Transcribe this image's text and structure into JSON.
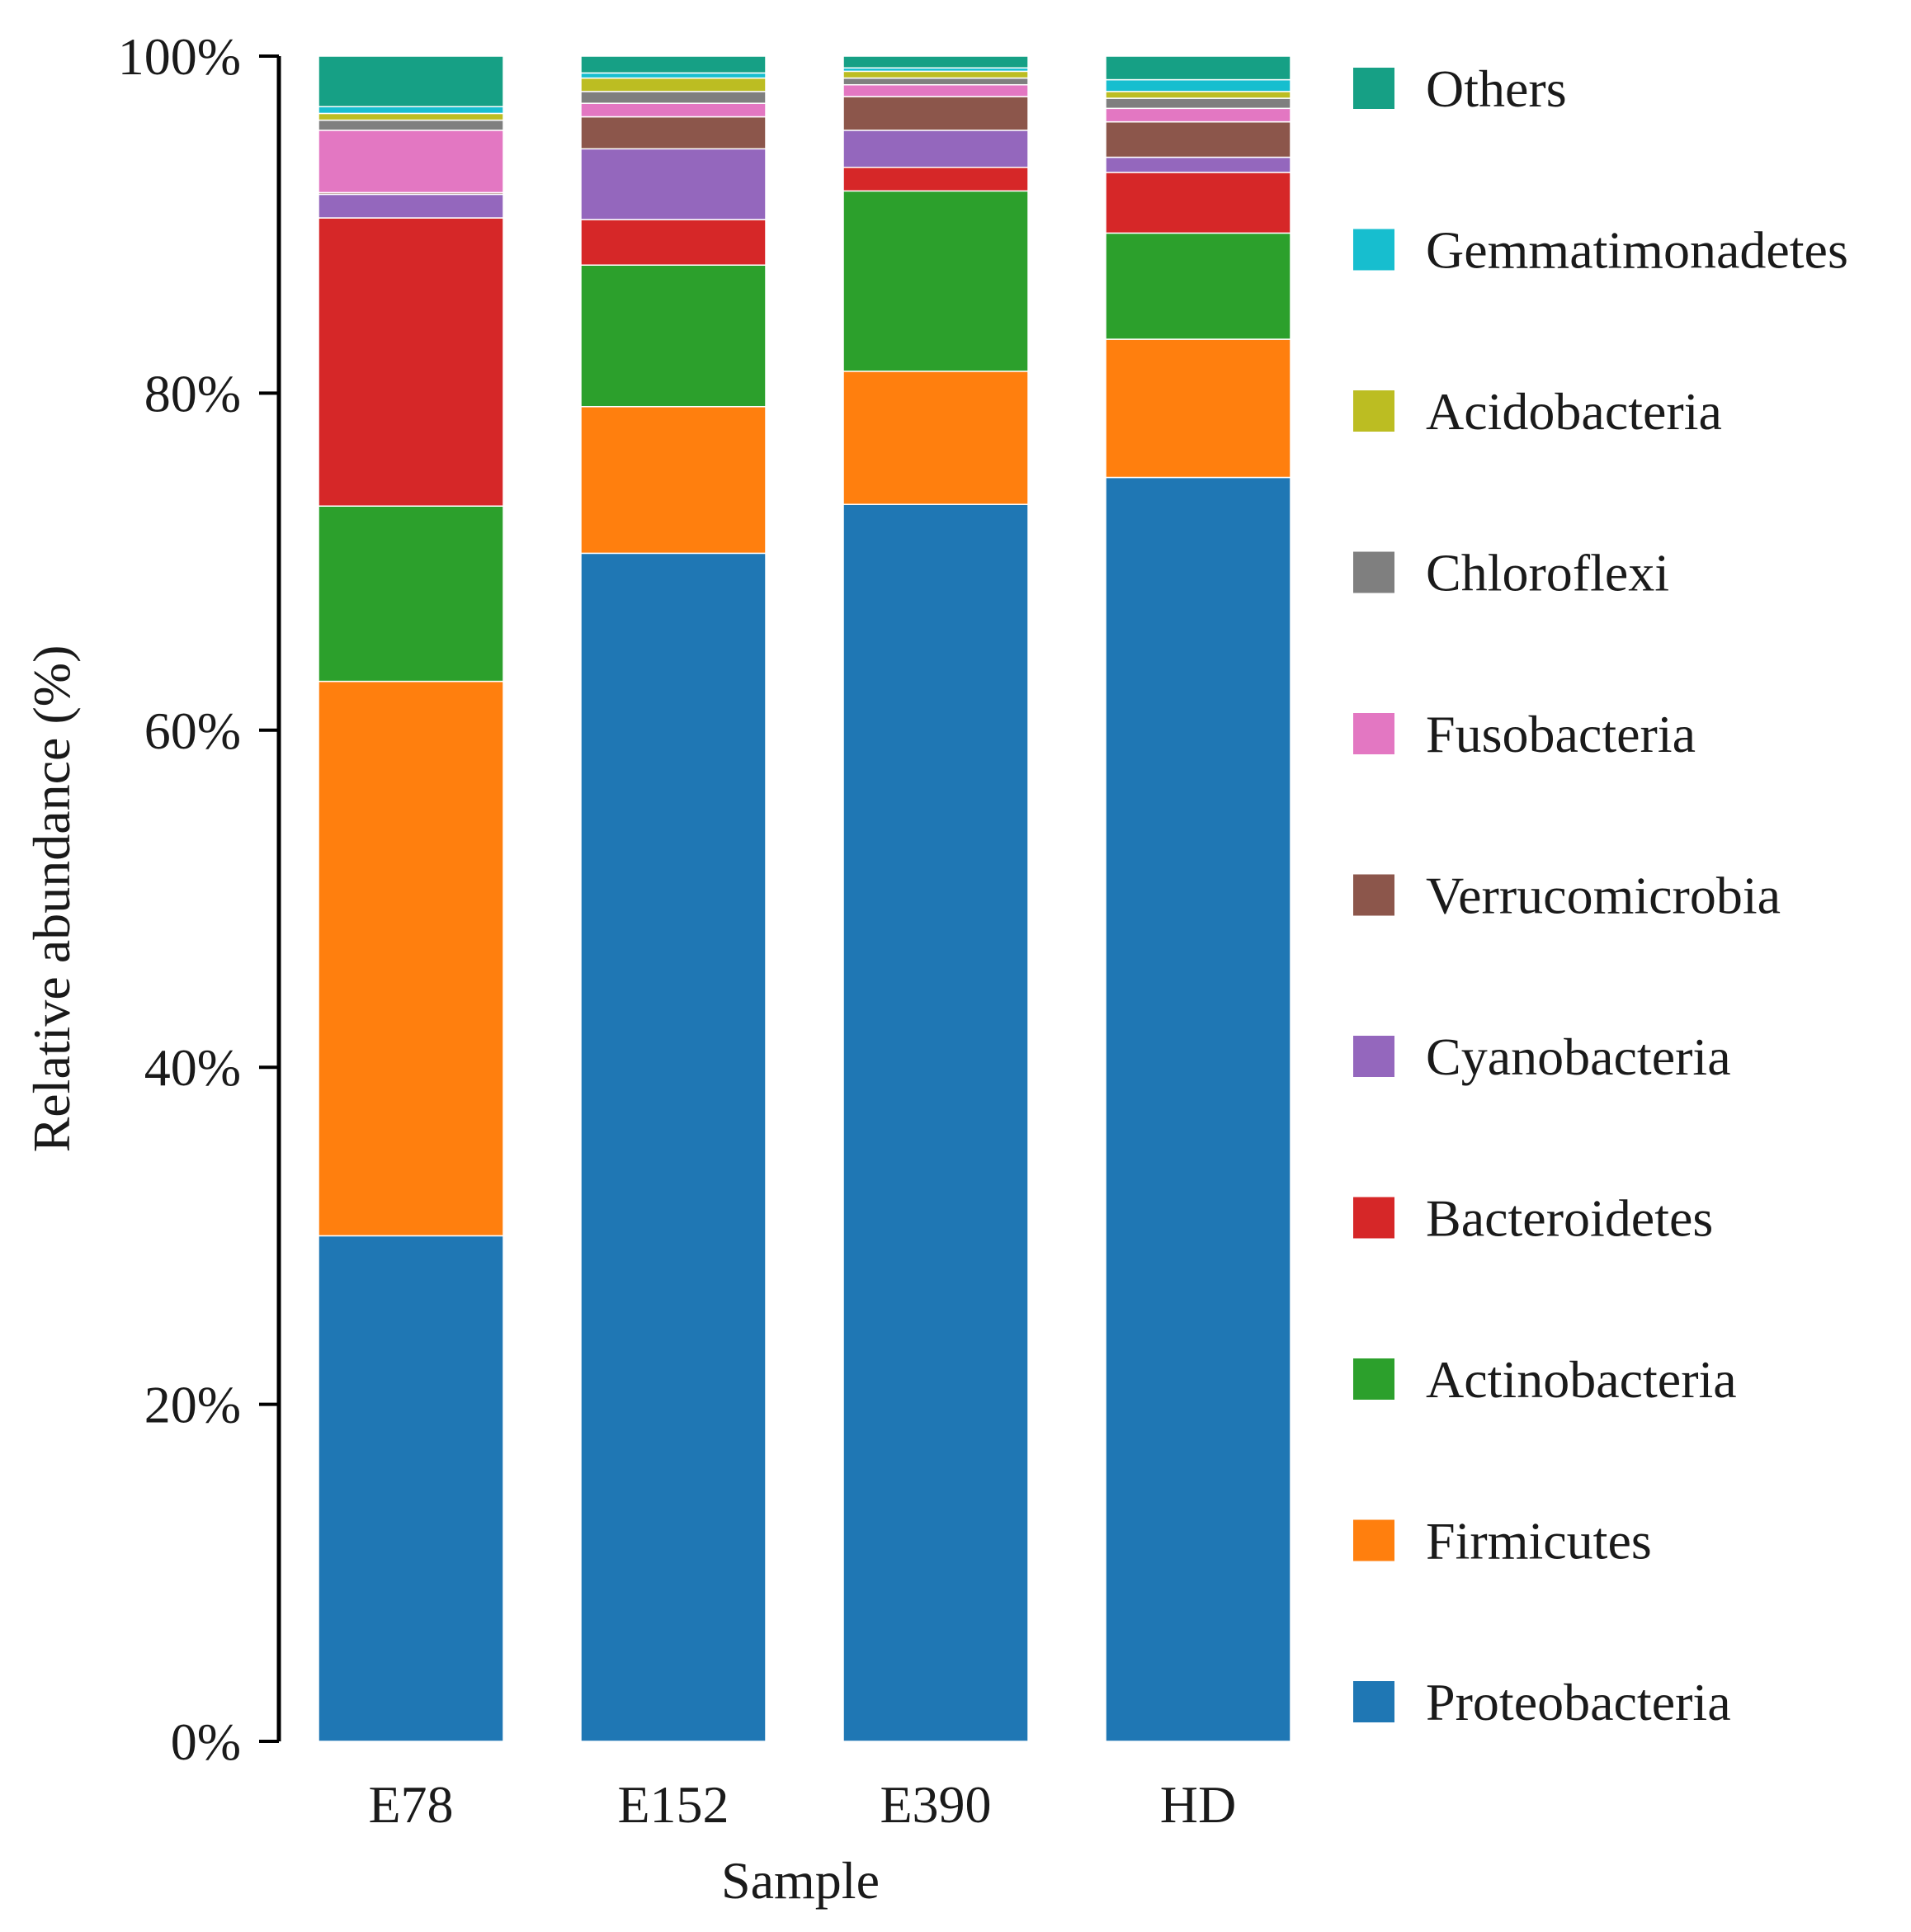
{
  "chart_data": {
    "type": "stacked_bar",
    "title": "",
    "xlabel": "Sample",
    "ylabel": "Relative abundance (%)",
    "ylim": [
      0,
      100
    ],
    "yticks": [
      "0%",
      "20%",
      "40%",
      "60%",
      "80%",
      "100%"
    ],
    "categories": [
      "E78",
      "E152",
      "E390",
      "HD"
    ],
    "series": [
      {
        "name": "Proteobacteria",
        "color": "#1f77b4",
        "values": [
          30.0,
          70.5,
          73.4,
          75.0
        ]
      },
      {
        "name": "Firmicutes",
        "color": "#ff7f0e",
        "values": [
          32.9,
          8.7,
          7.9,
          8.2
        ]
      },
      {
        "name": "Actinobacteria",
        "color": "#2ca02c",
        "values": [
          10.4,
          8.4,
          10.7,
          6.3
        ]
      },
      {
        "name": "Bacteroidetes",
        "color": "#d62728",
        "values": [
          17.1,
          2.7,
          1.4,
          3.6
        ]
      },
      {
        "name": "Cyanobacteria",
        "color": "#9467bd",
        "values": [
          1.4,
          4.2,
          2.2,
          0.9
        ]
      },
      {
        "name": "Verrucomicrobia",
        "color": "#8c564b",
        "values": [
          0.1,
          1.9,
          2.0,
          2.1
        ]
      },
      {
        "name": "Fusobacteria",
        "color": "#e377c2",
        "values": [
          3.7,
          0.8,
          0.7,
          0.8
        ]
      },
      {
        "name": "Chloroflexi",
        "color": "#7f7f7f",
        "values": [
          0.6,
          0.7,
          0.4,
          0.6
        ]
      },
      {
        "name": "Acidobacteria",
        "color": "#bcbd22",
        "values": [
          0.4,
          0.8,
          0.4,
          0.4
        ]
      },
      {
        "name": "Gemmatimonadetes",
        "color": "#17becf",
        "values": [
          0.4,
          0.3,
          0.2,
          0.7
        ]
      },
      {
        "name": "Others",
        "color": "#16a085",
        "values": [
          3.0,
          1.0,
          0.7,
          1.4
        ]
      }
    ],
    "legend_position": "right",
    "legend_order": [
      "Others",
      "Gemmatimonadetes",
      "Acidobacteria",
      "Chloroflexi",
      "Fusobacteria",
      "Verrucomicrobia",
      "Cyanobacteria",
      "Bacteroidetes",
      "Actinobacteria",
      "Firmicutes",
      "Proteobacteria"
    ]
  }
}
